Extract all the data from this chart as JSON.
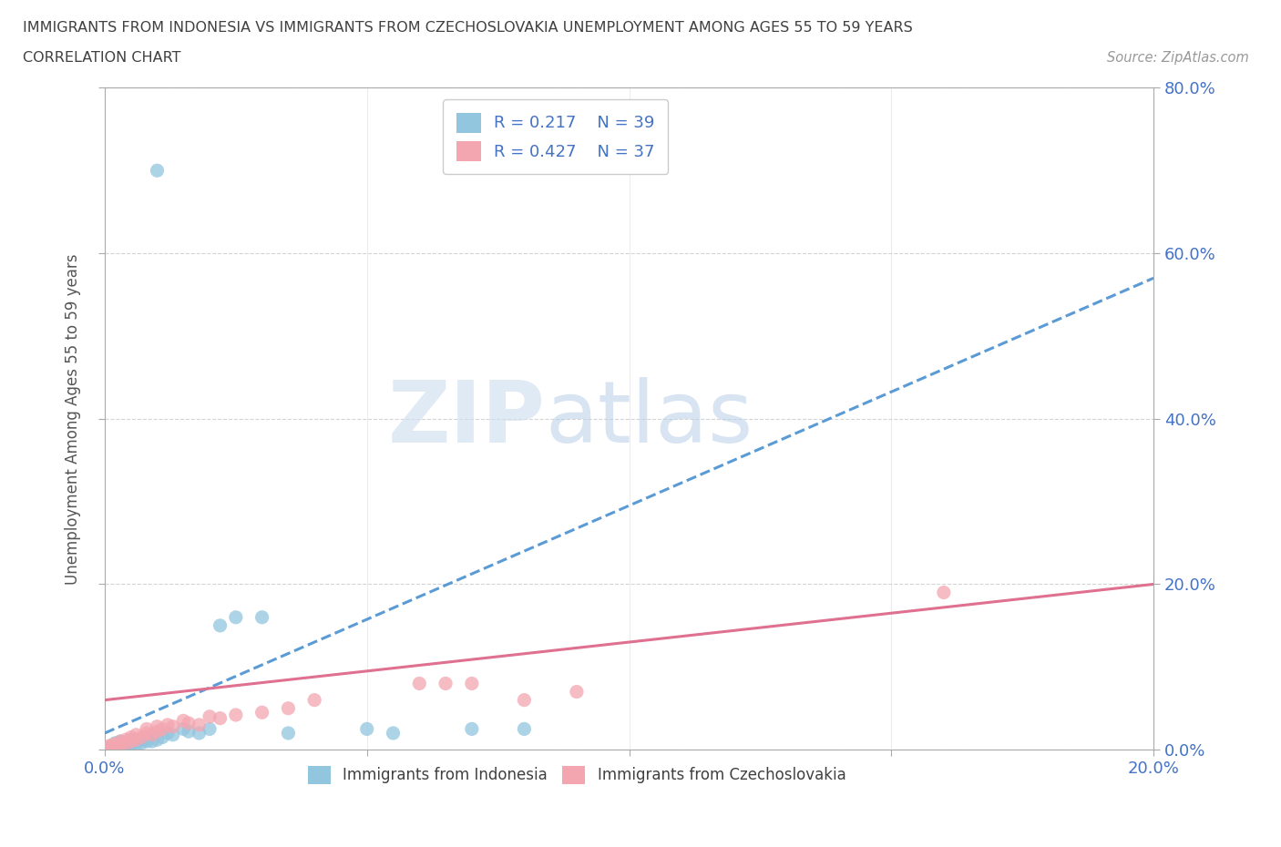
{
  "title_line1": "IMMIGRANTS FROM INDONESIA VS IMMIGRANTS FROM CZECHOSLOVAKIA UNEMPLOYMENT AMONG AGES 55 TO 59 YEARS",
  "title_line2": "CORRELATION CHART",
  "source_text": "Source: ZipAtlas.com",
  "ylabel": "Unemployment Among Ages 55 to 59 years",
  "xlim": [
    0.0,
    0.2
  ],
  "ylim": [
    0.0,
    0.8
  ],
  "xticks": [
    0.0,
    0.05,
    0.1,
    0.15,
    0.2
  ],
  "yticks": [
    0.0,
    0.2,
    0.4,
    0.6,
    0.8
  ],
  "xtick_labels": [
    "0.0%",
    "",
    "",
    "",
    "20.0%"
  ],
  "ytick_labels_right": [
    "0.0%",
    "20.0%",
    "40.0%",
    "60.0%",
    "80.0%"
  ],
  "color_indonesia": "#92c5de",
  "color_czechoslovakia": "#f4a6b0",
  "legend_r_indonesia": "R = 0.217",
  "legend_n_indonesia": "N = 39",
  "legend_r_czechoslovakia": "R = 0.427",
  "legend_n_czechoslovakia": "N = 37",
  "watermark_zip": "ZIP",
  "watermark_atlas": "atlas",
  "background_color": "#ffffff",
  "grid_color": "#d0d0d0",
  "title_color": "#404040",
  "tick_label_color": "#4472c4",
  "regression_color_indonesia": "#5b9bd5",
  "regression_color_czechoslovakia": "#e07090",
  "indo_line_x0": 0.0,
  "indo_line_y0": 0.02,
  "indo_line_x1": 0.2,
  "indo_line_y1": 0.57,
  "czech_line_x0": 0.0,
  "czech_line_y0": 0.06,
  "czech_line_x1": 0.2,
  "czech_line_y1": 0.2,
  "indo_points_x": [
    0.0005,
    0.001,
    0.001,
    0.0015,
    0.002,
    0.002,
    0.002,
    0.003,
    0.003,
    0.003,
    0.004,
    0.004,
    0.005,
    0.005,
    0.005,
    0.006,
    0.006,
    0.007,
    0.007,
    0.008,
    0.008,
    0.009,
    0.01,
    0.011,
    0.012,
    0.013,
    0.015,
    0.016,
    0.018,
    0.02,
    0.022,
    0.025,
    0.03,
    0.035,
    0.05,
    0.055,
    0.07,
    0.08,
    0.01
  ],
  "indo_points_y": [
    0.001,
    0.002,
    0.003,
    0.004,
    0.002,
    0.005,
    0.008,
    0.003,
    0.006,
    0.01,
    0.004,
    0.007,
    0.005,
    0.008,
    0.012,
    0.006,
    0.01,
    0.008,
    0.012,
    0.01,
    0.015,
    0.01,
    0.012,
    0.015,
    0.02,
    0.018,
    0.025,
    0.022,
    0.02,
    0.025,
    0.15,
    0.16,
    0.16,
    0.02,
    0.025,
    0.02,
    0.025,
    0.025,
    0.7
  ],
  "czech_points_x": [
    0.0005,
    0.001,
    0.001,
    0.002,
    0.002,
    0.003,
    0.003,
    0.004,
    0.004,
    0.005,
    0.005,
    0.006,
    0.006,
    0.007,
    0.008,
    0.008,
    0.009,
    0.01,
    0.01,
    0.011,
    0.012,
    0.013,
    0.015,
    0.016,
    0.018,
    0.02,
    0.022,
    0.025,
    0.03,
    0.035,
    0.04,
    0.06,
    0.065,
    0.07,
    0.08,
    0.09,
    0.16
  ],
  "czech_points_y": [
    0.002,
    0.003,
    0.005,
    0.004,
    0.007,
    0.006,
    0.01,
    0.008,
    0.012,
    0.01,
    0.015,
    0.012,
    0.018,
    0.015,
    0.02,
    0.025,
    0.018,
    0.022,
    0.028,
    0.025,
    0.03,
    0.028,
    0.035,
    0.032,
    0.03,
    0.04,
    0.038,
    0.042,
    0.045,
    0.05,
    0.06,
    0.08,
    0.08,
    0.08,
    0.06,
    0.07,
    0.19
  ]
}
